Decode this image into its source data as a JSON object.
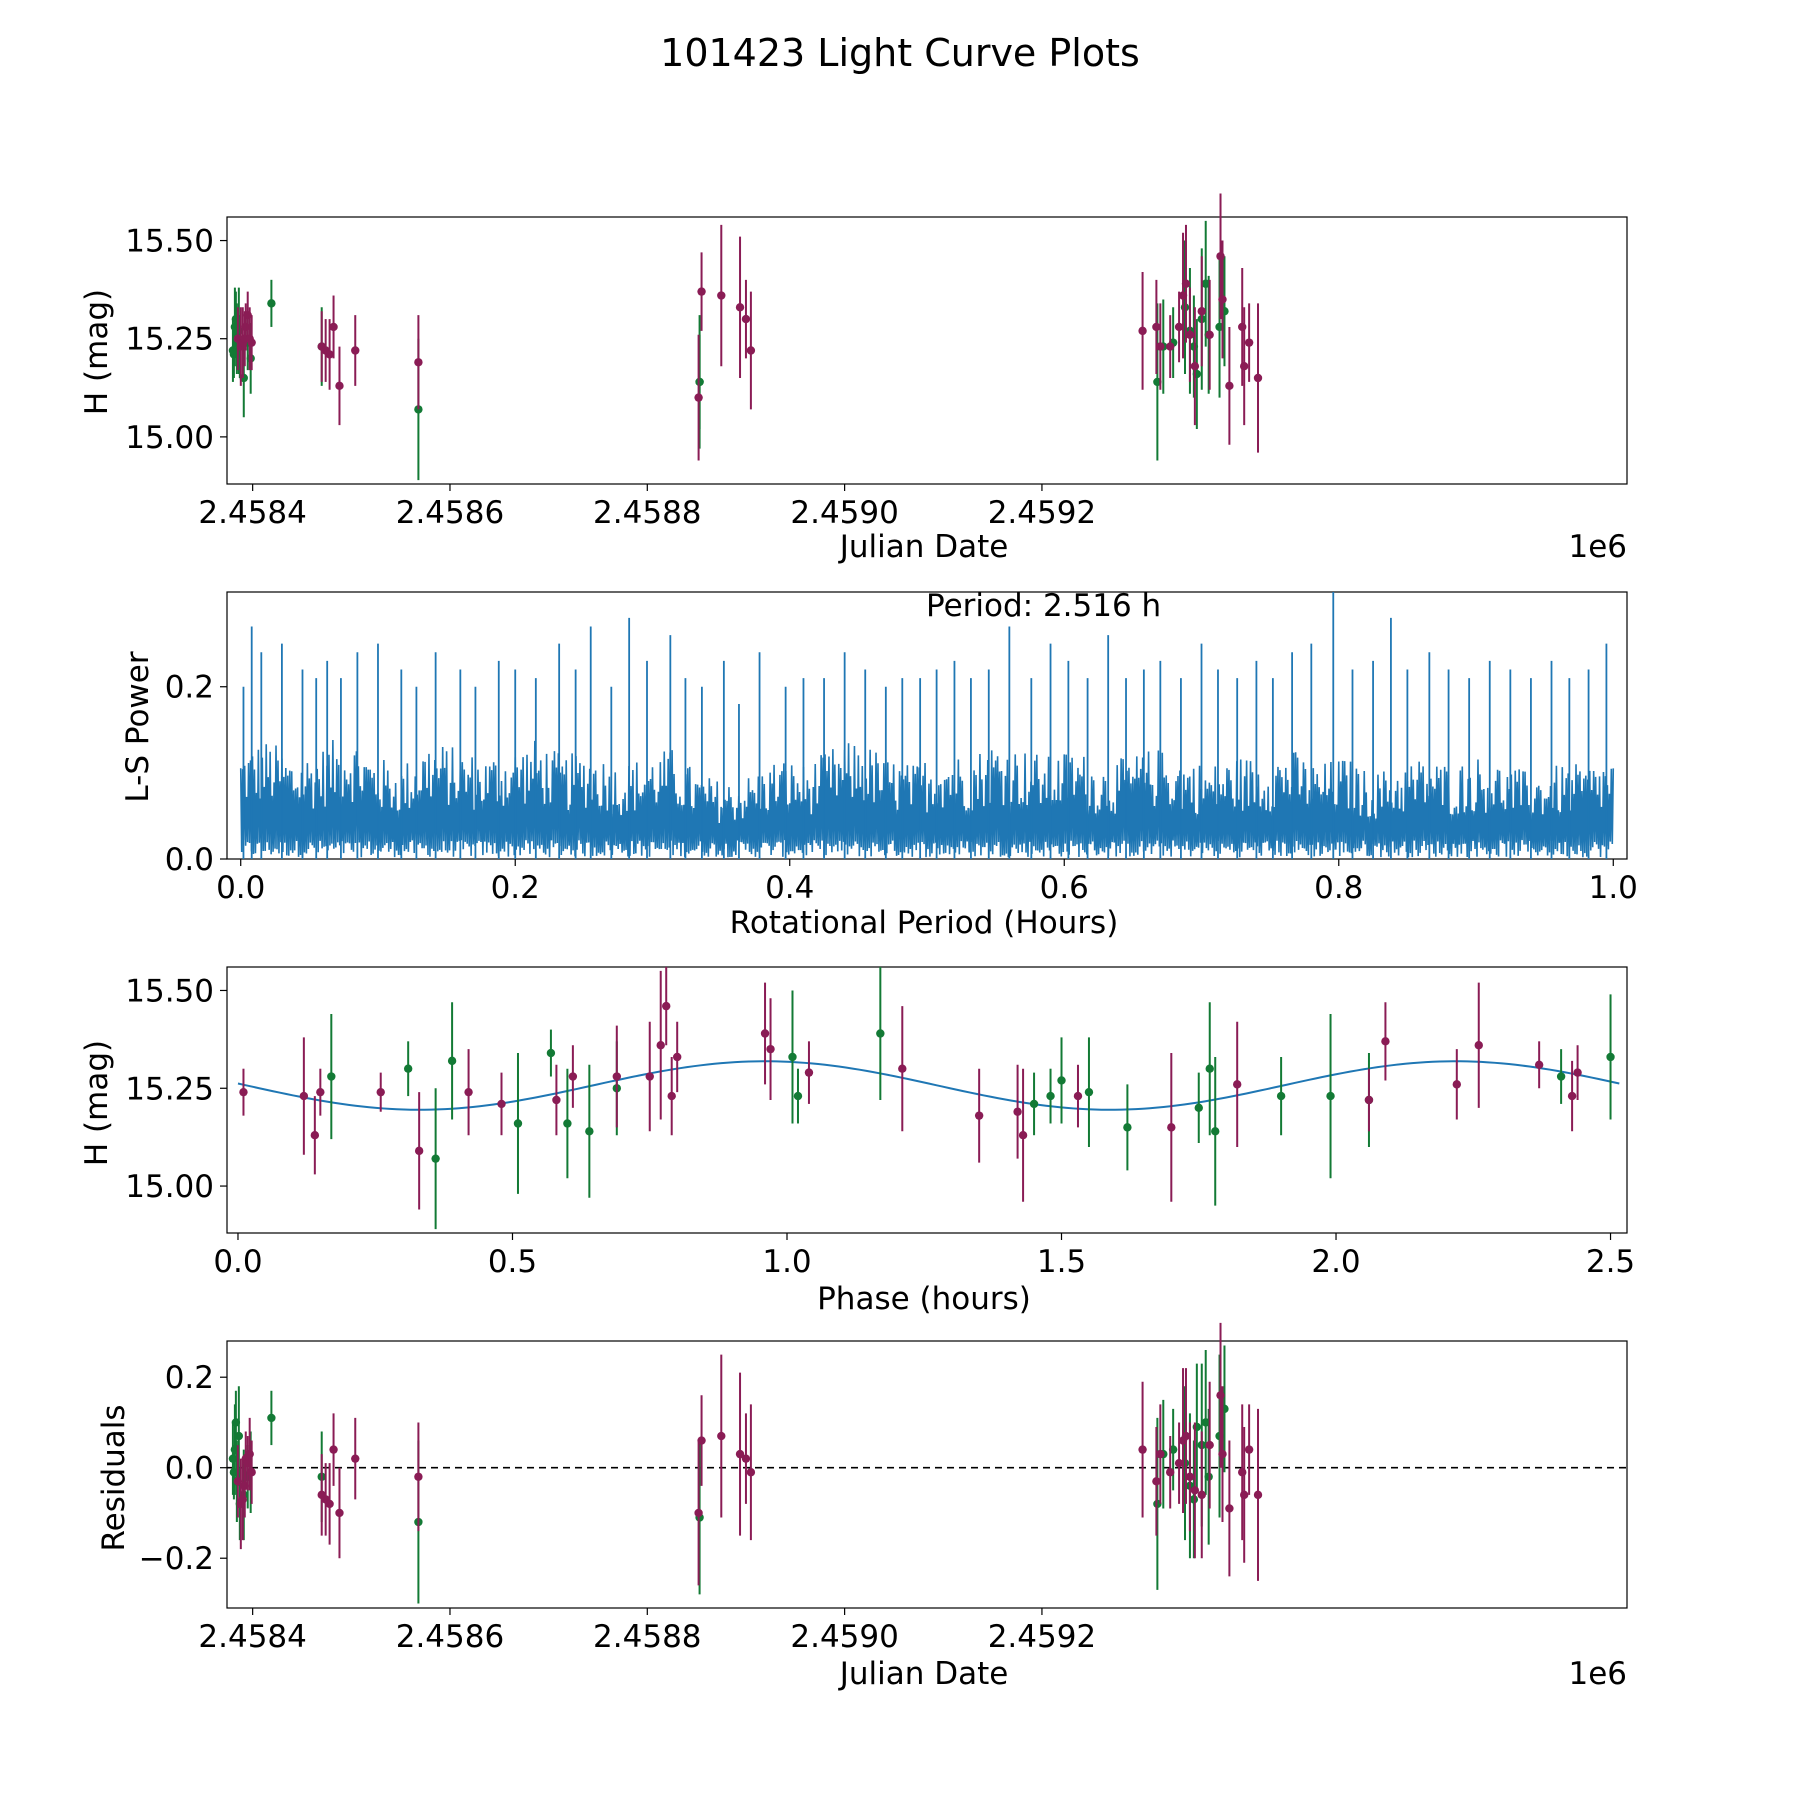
{
  "figure_title": "101423 Light Curve Plots",
  "colors": {
    "green": "#137a35",
    "magenta": "#8a1c55",
    "blue": "#1f77b4",
    "axis": "#000000"
  },
  "chart_data": [
    {
      "type": "scatter",
      "title": "",
      "xlabel": "Julian Date",
      "ylabel": "H (mag)",
      "offset_text": "1e6",
      "xlim": [
        2458374,
        2459793
      ],
      "ylim": [
        14.88,
        15.56
      ],
      "xticks": [
        2458400,
        2458600,
        2458800,
        2459000,
        2459200
      ],
      "xtick_labels": [
        "2.4584",
        "2.4586",
        "2.4588",
        "2.4590",
        "2.4592"
      ],
      "yticks": [
        15.0,
        15.25,
        15.5
      ],
      "ytick_labels": [
        "15.00",
        "15.25",
        "15.50"
      ],
      "series": [
        {
          "name": "green",
          "color": "#137a35",
          "x": [
            2458380,
            2458381,
            2458382,
            2458383,
            2458384,
            2458386,
            2458387,
            2458391,
            2458395,
            2458398,
            2458419,
            2458470,
            2458568,
            2458853,
            2458853,
            2459317,
            2459323,
            2459333,
            2459345,
            2459350,
            2459354,
            2459357,
            2459362,
            2459366,
            2459369,
            2459380,
            2459385
          ],
          "y": [
            15.22,
            15.21,
            15.28,
            15.3,
            15.25,
            15.27,
            15.23,
            15.15,
            15.24,
            15.2,
            15.34,
            15.23,
            15.07,
            15.14,
            15.14,
            15.14,
            15.23,
            15.24,
            15.33,
            15.27,
            15.23,
            15.16,
            15.3,
            15.39,
            15.26,
            15.28,
            15.32
          ],
          "err": [
            0.08,
            0.06,
            0.1,
            0.07,
            0.09,
            0.11,
            0.08,
            0.1,
            0.07,
            0.09,
            0.06,
            0.1,
            0.18,
            0.17,
            0.12,
            0.2,
            0.12,
            0.09,
            0.17,
            0.16,
            0.13,
            0.14,
            0.18,
            0.16,
            0.15,
            0.18,
            0.14
          ]
        },
        {
          "name": "magenta",
          "color": "#8a1c55",
          "x": [
            2458385,
            2458388,
            2458390,
            2458392,
            2458393,
            2458395,
            2458397,
            2458399,
            2458470,
            2458474,
            2458478,
            2458482,
            2458488,
            2458504,
            2458568,
            2458852,
            2458855,
            2458875,
            2458894,
            2458900,
            2458905,
            2459302,
            2459316,
            2459320,
            2459330,
            2459339,
            2459343,
            2459346,
            2459350,
            2459355,
            2459362,
            2459370,
            2459381,
            2459383,
            2459390,
            2459403,
            2459405,
            2459410,
            2459419
          ],
          "y": [
            15.25,
            15.23,
            15.24,
            15.25,
            15.28,
            15.31,
            15.25,
            15.24,
            15.23,
            15.22,
            15.21,
            15.28,
            15.13,
            15.22,
            15.19,
            15.1,
            15.37,
            15.36,
            15.33,
            15.3,
            15.22,
            15.27,
            15.28,
            15.23,
            15.23,
            15.28,
            15.36,
            15.39,
            15.26,
            15.18,
            15.32,
            15.26,
            15.46,
            15.35,
            15.13,
            15.28,
            15.18,
            15.24,
            15.15
          ],
          "err": [
            0.08,
            0.1,
            0.09,
            0.07,
            0.06,
            0.06,
            0.08,
            0.07,
            0.09,
            0.08,
            0.09,
            0.08,
            0.1,
            0.09,
            0.12,
            0.16,
            0.1,
            0.18,
            0.18,
            0.1,
            0.15,
            0.15,
            0.12,
            0.11,
            0.08,
            0.09,
            0.16,
            0.15,
            0.12,
            0.15,
            0.14,
            0.14,
            0.16,
            0.15,
            0.15,
            0.15,
            0.15,
            0.1,
            0.19
          ]
        }
      ]
    },
    {
      "type": "line",
      "title": "",
      "xlabel": "Rotational Period (Hours)",
      "ylabel": "L-S Power",
      "annotation": "Period: 2.516 h",
      "xlim": [
        -0.01,
        1.01
      ],
      "ylim": [
        0,
        0.31
      ],
      "xticks": [
        0.0,
        0.2,
        0.4,
        0.6,
        0.8,
        1.0
      ],
      "xtick_labels": [
        "0.0",
        "0.2",
        "0.4",
        "0.6",
        "0.8",
        "1.0"
      ],
      "yticks": [
        0.0,
        0.2
      ],
      "ytick_labels": [
        "0.0",
        "0.2"
      ],
      "series": [
        {
          "name": "Lomb-Scargle power",
          "color": "#1f77b4",
          "baseline": [
            0.13,
            0.14,
            0.12,
            0.13,
            0.15,
            0.12,
            0.11,
            0.14,
            0.13,
            0.12,
            0.13,
            0.14,
            0.12,
            0.13,
            0.11,
            0.12,
            0.13,
            0.1,
            0.09,
            0.1,
            0.12,
            0.11,
            0.13,
            0.14,
            0.12,
            0.11,
            0.13,
            0.12,
            0.14,
            0.13,
            0.12,
            0.13,
            0.11,
            0.12,
            0.13,
            0.12,
            0.11,
            0.12,
            0.12,
            0.13,
            0.11,
            0.12,
            0.1,
            0.11,
            0.12,
            0.11,
            0.12,
            0.11,
            0.1,
            0.11,
            0.11,
            0.12
          ],
          "peaks_x": [
            0.002,
            0.008,
            0.015,
            0.03,
            0.045,
            0.055,
            0.063,
            0.073,
            0.085,
            0.1,
            0.117,
            0.128,
            0.142,
            0.16,
            0.171,
            0.188,
            0.2,
            0.215,
            0.232,
            0.244,
            0.255,
            0.27,
            0.283,
            0.296,
            0.313,
            0.324,
            0.336,
            0.352,
            0.363,
            0.378,
            0.397,
            0.41,
            0.425,
            0.44,
            0.455,
            0.47,
            0.482,
            0.495,
            0.507,
            0.52,
            0.532,
            0.545,
            0.56,
            0.576,
            0.59,
            0.603,
            0.617,
            0.632,
            0.645,
            0.658,
            0.67,
            0.685,
            0.7,
            0.712,
            0.726,
            0.74,
            0.752,
            0.766,
            0.78,
            0.796,
            0.81,
            0.825,
            0.838,
            0.85,
            0.866,
            0.88,
            0.895,
            0.91,
            0.925,
            0.94,
            0.955,
            0.968,
            0.982,
            0.995
          ],
          "peaks_y": [
            0.2,
            0.27,
            0.24,
            0.25,
            0.22,
            0.21,
            0.23,
            0.21,
            0.24,
            0.25,
            0.22,
            0.2,
            0.24,
            0.22,
            0.2,
            0.23,
            0.22,
            0.21,
            0.25,
            0.22,
            0.27,
            0.2,
            0.28,
            0.23,
            0.26,
            0.21,
            0.2,
            0.23,
            0.18,
            0.24,
            0.2,
            0.21,
            0.21,
            0.24,
            0.22,
            0.2,
            0.21,
            0.21,
            0.22,
            0.23,
            0.21,
            0.22,
            0.27,
            0.21,
            0.25,
            0.23,
            0.21,
            0.26,
            0.21,
            0.22,
            0.23,
            0.21,
            0.25,
            0.22,
            0.21,
            0.23,
            0.21,
            0.24,
            0.25,
            0.31,
            0.22,
            0.23,
            0.28,
            0.22,
            0.24,
            0.22,
            0.21,
            0.23,
            0.22,
            0.21,
            0.23,
            0.21,
            0.22,
            0.25
          ]
        }
      ]
    },
    {
      "type": "scatter",
      "title": "",
      "xlabel": "Phase (hours)",
      "ylabel": "H (mag)",
      "xlim": [
        -0.02,
        2.53
      ],
      "ylim": [
        14.88,
        15.56
      ],
      "xticks": [
        0.0,
        0.5,
        1.0,
        1.5,
        2.0,
        2.5
      ],
      "xtick_labels": [
        "0.0",
        "0.5",
        "1.0",
        "1.5",
        "2.0",
        "2.5"
      ],
      "yticks": [
        15.0,
        15.25,
        15.5
      ],
      "ytick_labels": [
        "15.00",
        "15.25",
        "15.50"
      ],
      "model": {
        "type": "sine",
        "period": 1.258,
        "mean": 15.257,
        "amplitude": 0.062,
        "peak_at": 0.96,
        "x_range": [
          0.0,
          2.516
        ],
        "color": "#1f77b4"
      },
      "series": [
        {
          "name": "green",
          "color": "#137a35",
          "x": [
            0.17,
            0.31,
            0.36,
            0.39,
            0.51,
            0.57,
            0.6,
            0.64,
            0.69,
            1.01,
            1.02,
            1.17,
            1.45,
            1.48,
            1.5,
            1.55,
            1.62,
            1.75,
            1.77,
            1.78,
            1.9,
            1.99,
            2.06,
            2.41,
            2.5
          ],
          "y": [
            15.28,
            15.3,
            15.07,
            15.32,
            15.16,
            15.34,
            15.16,
            15.14,
            15.25,
            15.33,
            15.23,
            15.39,
            15.21,
            15.23,
            15.27,
            15.24,
            15.15,
            15.2,
            15.3,
            15.14,
            15.23,
            15.23,
            15.22,
            15.28,
            15.33
          ],
          "err": [
            0.16,
            0.07,
            0.18,
            0.15,
            0.18,
            0.06,
            0.14,
            0.17,
            0.12,
            0.17,
            0.07,
            0.17,
            0.08,
            0.07,
            0.11,
            0.14,
            0.11,
            0.09,
            0.17,
            0.19,
            0.1,
            0.21,
            0.12,
            0.07,
            0.16
          ]
        },
        {
          "name": "magenta",
          "color": "#8a1c55",
          "x": [
            0.01,
            0.12,
            0.14,
            0.15,
            0.26,
            0.33,
            0.42,
            0.48,
            0.58,
            0.61,
            0.69,
            0.75,
            0.77,
            0.78,
            0.79,
            0.8,
            0.96,
            0.97,
            1.04,
            1.21,
            1.35,
            1.42,
            1.43,
            1.53,
            1.7,
            1.82,
            2.06,
            2.09,
            2.22,
            2.26,
            2.37,
            2.43,
            2.44
          ],
          "y": [
            15.24,
            15.23,
            15.13,
            15.24,
            15.24,
            15.09,
            15.24,
            15.21,
            15.22,
            15.28,
            15.28,
            15.28,
            15.36,
            15.46,
            15.23,
            15.33,
            15.39,
            15.35,
            15.29,
            15.3,
            15.18,
            15.19,
            15.13,
            15.23,
            15.15,
            15.26,
            15.22,
            15.37,
            15.26,
            15.36,
            15.31,
            15.23,
            15.29
          ]
        },
        {
          "name": "magenta-err",
          "color": "#8a1c55",
          "err": [
            0.06,
            0.15,
            0.1,
            0.06,
            0.05,
            0.15,
            0.11,
            0.08,
            0.09,
            0.08,
            0.13,
            0.14,
            0.19,
            0.1,
            0.1,
            0.09,
            0.13,
            0.13,
            0.08,
            0.16,
            0.12,
            0.12,
            0.17,
            0.08,
            0.19,
            0.16,
            0.08,
            0.1,
            0.09,
            0.16,
            0.06,
            0.09,
            0.07
          ]
        }
      ]
    },
    {
      "type": "scatter",
      "title": "",
      "xlabel": "Julian Date",
      "ylabel": "Residuals",
      "offset_text": "1e6",
      "xlim": [
        2458374,
        2459793
      ],
      "ylim": [
        -0.31,
        0.28
      ],
      "xticks": [
        2458400,
        2458600,
        2458800,
        2459000,
        2459200
      ],
      "xtick_labels": [
        "2.4584",
        "2.4586",
        "2.4588",
        "2.4590",
        "2.4592"
      ],
      "yticks": [
        -0.2,
        0.0,
        0.2
      ],
      "ytick_labels": [
        "−0.2",
        "0.0",
        "0.2"
      ],
      "reference_line": 0.0,
      "series": [
        {
          "name": "green",
          "color": "#137a35",
          "x": [
            2458380,
            2458381,
            2458382,
            2458383,
            2458384,
            2458386,
            2458387,
            2458391,
            2458395,
            2458398,
            2458419,
            2458470,
            2458568,
            2458853,
            2459317,
            2459323,
            2459333,
            2459345,
            2459350,
            2459354,
            2459357,
            2459362,
            2459366,
            2459369,
            2459380,
            2459385
          ],
          "y": [
            0.02,
            -0.01,
            0.04,
            0.1,
            -0.03,
            0.07,
            -0.08,
            -0.06,
            -0.02,
            -0.01,
            0.11,
            -0.02,
            -0.12,
            -0.11,
            -0.08,
            0.03,
            0.04,
            0.01,
            -0.04,
            -0.07,
            0.09,
            0.05,
            0.1,
            -0.02,
            0.07,
            0.13
          ],
          "err": [
            0.08,
            0.06,
            0.1,
            0.07,
            0.09,
            0.11,
            0.08,
            0.1,
            0.07,
            0.09,
            0.06,
            0.1,
            0.18,
            0.17,
            0.19,
            0.12,
            0.09,
            0.17,
            0.16,
            0.13,
            0.14,
            0.18,
            0.16,
            0.15,
            0.18,
            0.14
          ]
        },
        {
          "name": "magenta",
          "color": "#8a1c55",
          "x": [
            2458385,
            2458388,
            2458390,
            2458392,
            2458393,
            2458395,
            2458397,
            2458399,
            2458470,
            2458474,
            2458478,
            2458482,
            2458488,
            2458504,
            2458568,
            2458852,
            2458855,
            2458875,
            2458894,
            2458900,
            2458905,
            2459302,
            2459316,
            2459320,
            2459330,
            2459339,
            2459343,
            2459346,
            2459350,
            2459355,
            2459362,
            2459370,
            2459381,
            2459383,
            2459390,
            2459403,
            2459405,
            2459410,
            2459419
          ],
          "y": [
            -0.03,
            -0.08,
            -0.07,
            -0.04,
            0.02,
            0.01,
            0.03,
            -0.01,
            -0.06,
            -0.07,
            -0.08,
            0.04,
            -0.1,
            0.02,
            -0.02,
            -0.1,
            0.06,
            0.07,
            0.03,
            0.02,
            -0.01,
            0.04,
            -0.03,
            0.03,
            -0.01,
            0.01,
            0.06,
            0.07,
            -0.02,
            -0.05,
            -0.06,
            0.05,
            0.16,
            0.03,
            -0.09,
            -0.01,
            -0.06,
            0.04,
            -0.06
          ],
          "err": [
            0.08,
            0.1,
            0.09,
            0.07,
            0.06,
            0.06,
            0.08,
            0.07,
            0.09,
            0.08,
            0.09,
            0.08,
            0.1,
            0.09,
            0.12,
            0.16,
            0.1,
            0.18,
            0.18,
            0.1,
            0.15,
            0.15,
            0.12,
            0.11,
            0.08,
            0.09,
            0.16,
            0.15,
            0.12,
            0.15,
            0.14,
            0.14,
            0.16,
            0.15,
            0.15,
            0.15,
            0.15,
            0.1,
            0.19
          ]
        }
      ]
    }
  ]
}
